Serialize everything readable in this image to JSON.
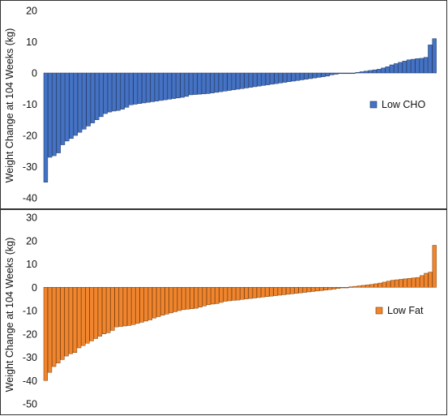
{
  "chart_data": [
    {
      "type": "bar",
      "series": [
        {
          "name": "Low CHO",
          "color": "#4472c4",
          "values": [
            -35.0,
            -27.0,
            -26.5,
            -25.6,
            -23.0,
            -21.8,
            -21.0,
            -20.0,
            -19.0,
            -18.0,
            -17.0,
            -16.0,
            -15.0,
            -14.0,
            -13.0,
            -12.5,
            -12.2,
            -12.0,
            -11.6,
            -11.0,
            -10.2,
            -10.0,
            -9.8,
            -9.6,
            -9.4,
            -9.2,
            -9.0,
            -8.8,
            -8.6,
            -8.4,
            -8.2,
            -8.0,
            -7.8,
            -7.5,
            -7.0,
            -6.9,
            -6.8,
            -6.7,
            -6.6,
            -6.4,
            -6.2,
            -6.0,
            -5.8,
            -5.6,
            -5.4,
            -5.2,
            -5.0,
            -4.8,
            -4.6,
            -4.4,
            -4.2,
            -4.0,
            -3.8,
            -3.6,
            -3.4,
            -3.2,
            -3.0,
            -2.8,
            -2.6,
            -2.4,
            -2.2,
            -2.0,
            -1.8,
            -1.6,
            -1.4,
            -1.2,
            -1.0,
            -0.6,
            -0.4,
            -0.2,
            -0.1,
            0,
            0,
            0.2,
            0.4,
            0.6,
            0.8,
            1.0,
            1.2,
            1.6,
            2.0,
            2.6,
            3.0,
            3.4,
            3.8,
            4.2,
            4.4,
            4.6,
            4.7,
            5.0,
            9.0,
            11.0
          ]
        }
      ],
      "ylabel": "Weight Change at 104 Weeks (kg)",
      "ylim": [
        -45,
        20
      ],
      "yticks": [
        20,
        10,
        0,
        -10,
        -20,
        -30,
        -40
      ],
      "legend": "right"
    },
    {
      "type": "bar",
      "series": [
        {
          "name": "Low Fat",
          "color": "#f0852d",
          "values": [
            -40.0,
            -36.5,
            -34.0,
            -32.5,
            -31.0,
            -29.5,
            -28.5,
            -28.0,
            -26.0,
            -25.0,
            -24.0,
            -23.0,
            -22.0,
            -21.0,
            -20.0,
            -19.5,
            -18.5,
            -17.0,
            -16.8,
            -16.6,
            -16.4,
            -16.0,
            -15.5,
            -15.0,
            -14.5,
            -14.0,
            -13.2,
            -12.6,
            -12.0,
            -11.5,
            -11.0,
            -10.5,
            -10.0,
            -9.6,
            -9.4,
            -9.2,
            -9.0,
            -8.5,
            -8.0,
            -7.5,
            -7.2,
            -7.0,
            -6.5,
            -6.0,
            -5.8,
            -5.6,
            -5.5,
            -5.2,
            -5.0,
            -4.8,
            -4.6,
            -4.4,
            -4.2,
            -4.0,
            -3.8,
            -3.6,
            -3.4,
            -3.2,
            -3.0,
            -2.8,
            -2.6,
            -2.4,
            -2.2,
            -2.0,
            -1.8,
            -1.6,
            -1.4,
            -1.2,
            -1.0,
            -0.8,
            -0.5,
            -0.2,
            0,
            0.2,
            0.4,
            0.6,
            0.8,
            1.0,
            1.2,
            1.5,
            1.8,
            2.2,
            2.6,
            3.0,
            3.2,
            3.4,
            3.6,
            3.8,
            4.0,
            4.2,
            5.0,
            6.0,
            6.5,
            18.0
          ]
        }
      ],
      "ylabel": "Weight Change at 104 Weeks (kg)",
      "ylim": [
        -52,
        32
      ],
      "yticks": [
        30,
        20,
        10,
        0,
        -10,
        -20,
        -30,
        -40,
        -50
      ],
      "legend": "right"
    }
  ]
}
